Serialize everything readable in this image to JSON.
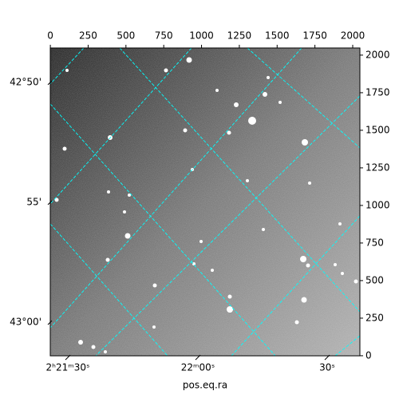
{
  "chart_data": {
    "type": "image",
    "xlabel": "pos.eq.ra",
    "xlim": [
      -0.5,
      2047.5
    ],
    "xticks": [
      0,
      250,
      500,
      750,
      1000,
      1250,
      1500,
      1750,
      2000
    ],
    "ylim": [
      -0.5,
      2047.5
    ],
    "yticks": [
      0,
      250,
      500,
      750,
      1000,
      1250,
      1500,
      1750,
      2000
    ],
    "ra_ticks": [
      "2ʰ21ᵐ30ˢ",
      "22ᵐ00ˢ",
      "30ˢ"
    ],
    "dec_ticks": [
      "42°50'",
      "55'",
      "43°00'"
    ],
    "grid": true,
    "grid_color": "#00ffff"
  }
}
